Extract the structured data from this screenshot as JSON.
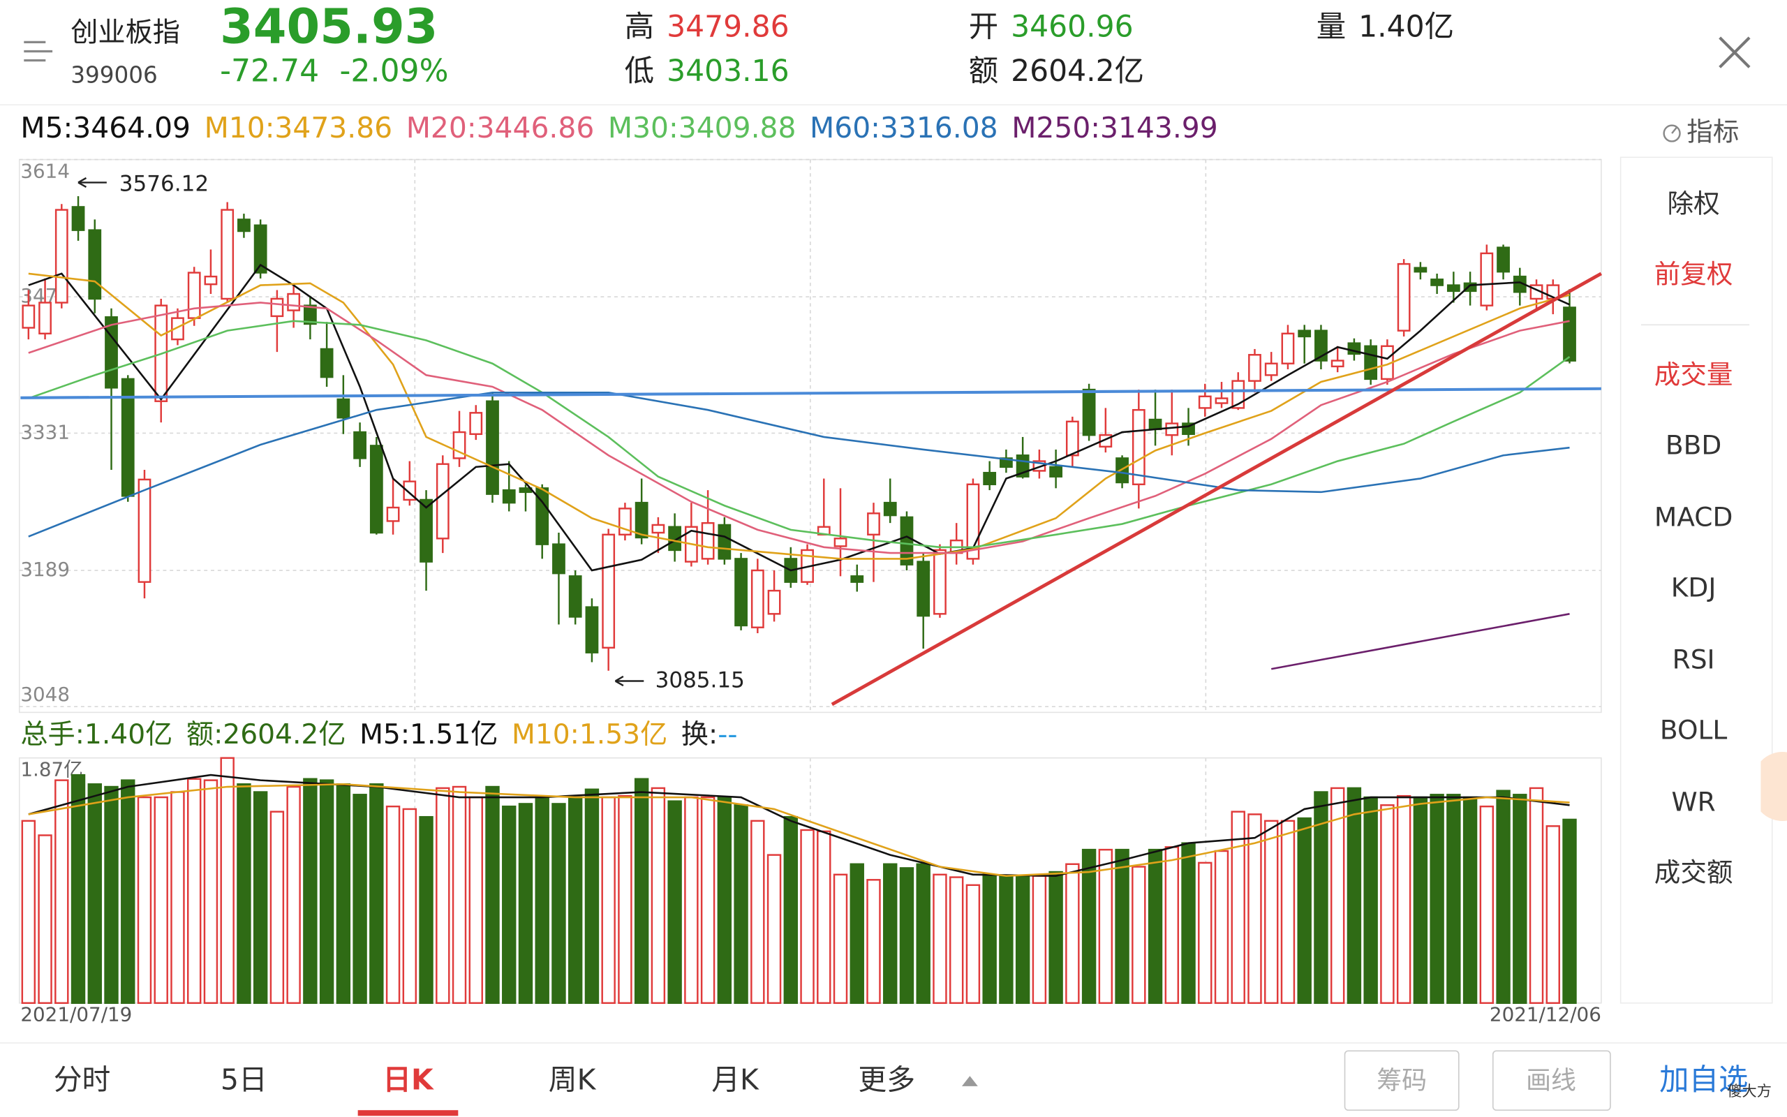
{
  "header": {
    "name": "创业板指",
    "code": "399006",
    "price": 3405.93,
    "change": -72.74,
    "change_pct": "-2.09%",
    "high_label": "高",
    "high": 3479.86,
    "low_label": "低",
    "low": 3403.16,
    "open_label": "开",
    "open": 3460.96,
    "amount_label": "额",
    "amount": "2604.2亿",
    "volume_label": "量",
    "volume": "1.40亿"
  },
  "indicator_button": "指标",
  "chart_data": [
    {
      "type": "candlestick",
      "up_color": "#e03a3a",
      "down_color": "#2f6b15",
      "ylim": [
        3048,
        3614
      ],
      "yticks": [
        3614,
        3472,
        3331,
        3189,
        3048
      ],
      "grid": true,
      "candles": [
        [
          3440,
          3479,
          3428,
          3463
        ],
        [
          3434,
          3491,
          3428,
          3466
        ],
        [
          3466,
          3568,
          3460,
          3562
        ],
        [
          3565,
          3576.12,
          3530,
          3541
        ],
        [
          3541,
          3552,
          3455,
          3470
        ],
        [
          3451,
          3460,
          3293,
          3378
        ],
        [
          3387,
          3391,
          3260,
          3266
        ],
        [
          3177,
          3293,
          3160,
          3283
        ],
        [
          3364,
          3470,
          3342,
          3463
        ],
        [
          3428,
          3460,
          3422,
          3450
        ],
        [
          3450,
          3503,
          3442,
          3497
        ],
        [
          3485,
          3521,
          3475,
          3493
        ],
        [
          3470,
          3570,
          3466,
          3562
        ],
        [
          3552,
          3558,
          3533,
          3540
        ],
        [
          3546,
          3552,
          3491,
          3497
        ],
        [
          3452,
          3479,
          3415,
          3470
        ],
        [
          3458,
          3485,
          3440,
          3475
        ],
        [
          3463,
          3473,
          3428,
          3444
        ],
        [
          3418,
          3446,
          3379,
          3389
        ],
        [
          3366,
          3391,
          3330,
          3347
        ],
        [
          3332,
          3342,
          3296,
          3305
        ],
        [
          3318,
          3327,
          3226,
          3228
        ],
        [
          3240,
          3284,
          3226,
          3254
        ],
        [
          3262,
          3302,
          3256,
          3281
        ],
        [
          3262,
          3272,
          3168,
          3198
        ],
        [
          3222,
          3308,
          3207,
          3299
        ],
        [
          3305,
          3354,
          3296,
          3332
        ],
        [
          3330,
          3360,
          3324,
          3352
        ],
        [
          3364,
          3373,
          3259,
          3268
        ],
        [
          3272,
          3302,
          3250,
          3259
        ],
        [
          3274,
          3278,
          3250,
          3270
        ],
        [
          3274,
          3278,
          3201,
          3216
        ],
        [
          3216,
          3228,
          3133,
          3186
        ],
        [
          3183,
          3189,
          3133,
          3141
        ],
        [
          3151,
          3160,
          3094,
          3104
        ],
        [
          3109,
          3232,
          3085.15,
          3226
        ],
        [
          3226,
          3259,
          3220,
          3253
        ],
        [
          3259,
          3284,
          3216,
          3223
        ],
        [
          3228,
          3244,
          3207,
          3236
        ],
        [
          3234,
          3248,
          3198,
          3210
        ],
        [
          3198,
          3259,
          3193,
          3234
        ],
        [
          3201,
          3272,
          3195,
          3238
        ],
        [
          3236,
          3244,
          3195,
          3201
        ],
        [
          3201,
          3207,
          3127,
          3132
        ],
        [
          3130,
          3201,
          3124,
          3189
        ],
        [
          3144,
          3189,
          3136,
          3168
        ],
        [
          3201,
          3213,
          3171,
          3177
        ],
        [
          3177,
          3216,
          3174,
          3210
        ],
        [
          3226,
          3284,
          3226,
          3234
        ],
        [
          3214,
          3274,
          3183,
          3222
        ],
        [
          3183,
          3195,
          3167,
          3177
        ],
        [
          3226,
          3259,
          3177,
          3248
        ],
        [
          3259,
          3284,
          3238,
          3246
        ],
        [
          3244,
          3250,
          3189,
          3195
        ],
        [
          3198,
          3207,
          3108,
          3142
        ],
        [
          3144,
          3216,
          3140,
          3210
        ],
        [
          3207,
          3238,
          3195,
          3220
        ],
        [
          3201,
          3284,
          3195,
          3278
        ],
        [
          3290,
          3302,
          3272,
          3278
        ],
        [
          3305,
          3314,
          3290,
          3296
        ],
        [
          3308,
          3327,
          3284,
          3286
        ],
        [
          3292,
          3314,
          3284,
          3302
        ],
        [
          3296,
          3314,
          3274,
          3286
        ],
        [
          3308,
          3348,
          3296,
          3343
        ],
        [
          3376,
          3382,
          3323,
          3329
        ],
        [
          3317,
          3357,
          3311,
          3329
        ],
        [
          3305,
          3308,
          3274,
          3280
        ],
        [
          3278,
          3376,
          3253,
          3355
        ],
        [
          3345,
          3376,
          3318,
          3335
        ],
        [
          3329,
          3376,
          3308,
          3341
        ],
        [
          3341,
          3357,
          3318,
          3330
        ],
        [
          3357,
          3382,
          3348,
          3369
        ],
        [
          3362,
          3384,
          3357,
          3367
        ],
        [
          3357,
          3394,
          3355,
          3385
        ],
        [
          3385,
          3418,
          3373,
          3412
        ],
        [
          3391,
          3415,
          3385,
          3403
        ],
        [
          3403,
          3443,
          3397,
          3434
        ],
        [
          3437,
          3443,
          3403,
          3431
        ],
        [
          3437,
          3443,
          3397,
          3406
        ],
        [
          3400,
          3421,
          3394,
          3406
        ],
        [
          3424,
          3429,
          3406,
          3413
        ],
        [
          3421,
          3428,
          3381,
          3387
        ],
        [
          3387,
          3428,
          3381,
          3421
        ],
        [
          3437,
          3511,
          3431,
          3506
        ],
        [
          3502,
          3508,
          3490,
          3498
        ],
        [
          3490,
          3496,
          3475,
          3484
        ],
        [
          3484,
          3498,
          3466,
          3478
        ],
        [
          3486,
          3498,
          3463,
          3478
        ],
        [
          3463,
          3526,
          3458,
          3517
        ],
        [
          3523,
          3526,
          3490,
          3498
        ],
        [
          3493,
          3502,
          3463,
          3477
        ],
        [
          3470,
          3490,
          3460,
          3484
        ],
        [
          3470,
          3490,
          3454,
          3484
        ],
        [
          3460.96,
          3479.86,
          3403.16,
          3405.93
        ]
      ],
      "series": [
        {
          "name": "M5:3464.09",
          "color": "#111111",
          "x": [
            0,
            2,
            8,
            14,
            16,
            18,
            20,
            22,
            24,
            27,
            29,
            31,
            34,
            37,
            40,
            42,
            46,
            49,
            53,
            55,
            57,
            59,
            62,
            66,
            70,
            73,
            76,
            79,
            82,
            84,
            87,
            90,
            93
          ],
          "values": [
            3484,
            3496,
            3366,
            3505,
            3484,
            3460,
            3379,
            3284,
            3254,
            3296,
            3299,
            3260,
            3189,
            3200,
            3230,
            3224,
            3189,
            3200,
            3224,
            3206,
            3212,
            3284,
            3302,
            3332,
            3338,
            3361,
            3391,
            3420,
            3408,
            3437,
            3484,
            3487,
            3464
          ]
        },
        {
          "name": "M10:3473.86",
          "color": "#e0a21a",
          "x": [
            0,
            4,
            8,
            10,
            14,
            17,
            19,
            22,
            24,
            28,
            31,
            34,
            37,
            41,
            45,
            49,
            53,
            57,
            62,
            65,
            68,
            71,
            75,
            78,
            82,
            86,
            90,
            93
          ],
          "values": [
            3496,
            3488,
            3432,
            3449,
            3484,
            3486,
            3466,
            3402,
            3327,
            3296,
            3273,
            3243,
            3226,
            3213,
            3207,
            3201,
            3201,
            3211,
            3243,
            3284,
            3313,
            3331,
            3354,
            3384,
            3402,
            3431,
            3460,
            3474
          ]
        },
        {
          "name": "M20:3446.86",
          "color": "#e0607a",
          "x": [
            0,
            5,
            10,
            14,
            18,
            21,
            24,
            28,
            31,
            35,
            40,
            44,
            48,
            52,
            56,
            60,
            64,
            68,
            71,
            75,
            78,
            82,
            86,
            90,
            93
          ],
          "values": [
            3414,
            3443,
            3460,
            3466,
            3460,
            3427,
            3391,
            3379,
            3355,
            3308,
            3260,
            3231,
            3213,
            3207,
            3207,
            3219,
            3243,
            3266,
            3289,
            3325,
            3360,
            3384,
            3413,
            3437,
            3447
          ]
        },
        {
          "name": "M30:3409.88",
          "color": "#5cbf5c",
          "x": [
            0,
            4,
            8,
            12,
            16,
            20,
            24,
            28,
            31,
            35,
            38,
            42,
            46,
            51,
            55,
            57,
            62,
            66,
            70,
            75,
            79,
            83,
            86,
            90,
            93
          ],
          "values": [
            3367,
            3391,
            3413,
            3437,
            3447,
            3443,
            3427,
            3403,
            3373,
            3327,
            3286,
            3256,
            3231,
            3220,
            3213,
            3213,
            3226,
            3237,
            3256,
            3278,
            3302,
            3320,
            3343,
            3373,
            3410
          ]
        },
        {
          "name": "M60:3316.08",
          "color": "#2a72b5",
          "x": [
            0,
            7,
            14,
            21,
            28,
            35,
            41,
            48,
            54,
            60,
            66,
            73,
            78,
            84,
            89,
            93
          ],
          "values": [
            3224,
            3272,
            3319,
            3355,
            3373,
            3373,
            3355,
            3327,
            3314,
            3302,
            3290,
            3272,
            3270,
            3284,
            3308,
            3316
          ]
        },
        {
          "name": "M250:3143.99",
          "color": "#6b1f6b",
          "x": [
            75,
            93
          ],
          "values": [
            3087,
            3144
          ]
        }
      ]
    },
    {
      "type": "bar",
      "ylim": [
        0,
        1.87
      ],
      "yticks": [
        {
          "value": 1.87,
          "label": "1.87亿"
        }
      ],
      "info": [
        "总手:1.40亿",
        "额:2604.2亿"
      ],
      "info_color": "#2f6b15",
      "turnover": {
        "label": "换:",
        "value": "--",
        "color": "#2a9ae0"
      },
      "values": [
        1.39,
        1.28,
        1.7,
        1.74,
        1.67,
        1.65,
        1.7,
        1.57,
        1.57,
        1.61,
        1.71,
        1.7,
        1.87,
        1.67,
        1.61,
        1.46,
        1.65,
        1.71,
        1.7,
        1.67,
        1.59,
        1.67,
        1.5,
        1.48,
        1.42,
        1.64,
        1.65,
        1.57,
        1.65,
        1.5,
        1.52,
        1.57,
        1.52,
        1.57,
        1.63,
        1.57,
        1.58,
        1.71,
        1.64,
        1.54,
        1.57,
        1.57,
        1.57,
        1.51,
        1.39,
        1.13,
        1.42,
        1.32,
        1.31,
        0.98,
        1.06,
        0.94,
        1.06,
        1.03,
        1.06,
        0.98,
        0.96,
        0.9,
        0.98,
        0.97,
        0.97,
        0.97,
        1.0,
        1.06,
        1.17,
        1.17,
        1.17,
        1.04,
        1.17,
        1.19,
        1.22,
        1.07,
        1.16,
        1.46,
        1.44,
        1.39,
        1.39,
        1.41,
        1.61,
        1.64,
        1.64,
        1.57,
        1.51,
        1.58,
        1.57,
        1.59,
        1.59,
        1.57,
        1.5,
        1.62,
        1.59,
        1.64,
        1.35,
        1.4
      ],
      "series": [
        {
          "name": "M5:1.51亿",
          "color": "#111111",
          "x": [
            0,
            6,
            11,
            14,
            21,
            26,
            31,
            37,
            43,
            46,
            52,
            57,
            62,
            66,
            70,
            74,
            77,
            81,
            85,
            89,
            93
          ],
          "values": [
            1.44,
            1.65,
            1.74,
            1.7,
            1.65,
            1.57,
            1.57,
            1.61,
            1.57,
            1.39,
            1.13,
            0.98,
            0.97,
            1.09,
            1.22,
            1.26,
            1.48,
            1.57,
            1.57,
            1.57,
            1.51
          ]
        },
        {
          "name": "M10:1.53亿",
          "color": "#e0a21a",
          "x": [
            0,
            6,
            12,
            19,
            26,
            33,
            40,
            45,
            50,
            55,
            59,
            64,
            69,
            74,
            80,
            84,
            88,
            93
          ],
          "values": [
            1.44,
            1.57,
            1.65,
            1.67,
            1.61,
            1.57,
            1.57,
            1.48,
            1.26,
            1.04,
            0.97,
            1.0,
            1.09,
            1.22,
            1.44,
            1.52,
            1.57,
            1.53
          ]
        }
      ],
      "x_labels": [
        "2021/07/19",
        "2021/12/06"
      ]
    }
  ],
  "side_menu": [
    {
      "label": "除权",
      "active": false
    },
    {
      "label": "前复权",
      "active": true
    },
    {
      "label": "成交量",
      "active": true
    },
    {
      "label": "BBD",
      "active": false
    },
    {
      "label": "MACD",
      "active": false
    },
    {
      "label": "KDJ",
      "active": false
    },
    {
      "label": "RSI",
      "active": false
    },
    {
      "label": "BOLL",
      "active": false
    },
    {
      "label": "WR",
      "active": false
    },
    {
      "label": "成交额",
      "active": false
    }
  ],
  "tabs": [
    {
      "label": "分时",
      "active": false
    },
    {
      "label": "5日",
      "active": false
    },
    {
      "label": "日K",
      "active": true
    },
    {
      "label": "周K",
      "active": false
    },
    {
      "label": "月K",
      "active": false
    },
    {
      "label": "更多",
      "active": false
    }
  ],
  "tools": [
    "筹码",
    "画线"
  ],
  "add_button": "加自选",
  "watermark": "傻大方"
}
